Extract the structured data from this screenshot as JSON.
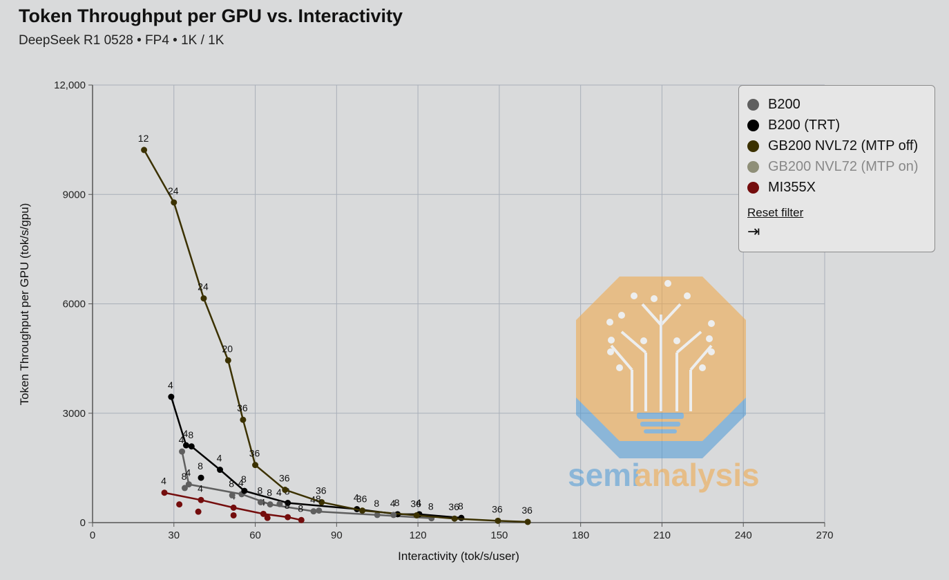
{
  "header": {
    "title": "Token Throughput per GPU vs. Interactivity",
    "subtitle": "DeepSeek R1 0528 • FP4 • 1K / 1K"
  },
  "legend": {
    "reset_label": "Reset filter",
    "collapse_glyph": "⇥"
  },
  "chart_data": {
    "type": "scatter",
    "xlabel": "Interactivity (tok/s/user)",
    "ylabel": "Token Throughput per GPU (tok/s/gpu)",
    "xlim": [
      0,
      270
    ],
    "ylim": [
      0,
      12000
    ],
    "xticks": [
      0,
      30,
      60,
      90,
      120,
      150,
      180,
      210,
      240,
      270
    ],
    "yticks": [
      0,
      3000,
      6000,
      9000,
      12000
    ],
    "xtick_labels": [
      "0",
      "30",
      "60",
      "90",
      "120",
      "150",
      "180",
      "210",
      "240",
      "270"
    ],
    "ytick_labels": [
      "0",
      "3000",
      "6000",
      "9000",
      "12,000"
    ],
    "grid": true,
    "legend_position": "top-right",
    "series": [
      {
        "name": "B200",
        "color": "#5f5f5f",
        "connected": true,
        "active": true,
        "points": [
          {
            "x": 33,
            "y": 1950,
            "label": "4"
          },
          {
            "x": 35.5,
            "y": 1050,
            "label": "4"
          },
          {
            "x": 55,
            "y": 780,
            "label": "4"
          },
          {
            "x": 65.5,
            "y": 500,
            "label": "8"
          },
          {
            "x": 81.5,
            "y": 310,
            "label": "4"
          },
          {
            "x": 105,
            "y": 210,
            "label": "8"
          },
          {
            "x": 125,
            "y": 120,
            "label": "8"
          }
        ]
      },
      {
        "name": "B200 (TRT)",
        "color": "#000000",
        "connected": true,
        "active": true,
        "points": [
          {
            "x": 29,
            "y": 3450,
            "label": "4"
          },
          {
            "x": 34.5,
            "y": 2120,
            "label": "4"
          },
          {
            "x": 36.5,
            "y": 2090,
            "label": "8"
          },
          {
            "x": 47,
            "y": 1450,
            "label": "4"
          },
          {
            "x": 56,
            "y": 870,
            "label": "8"
          },
          {
            "x": 72,
            "y": 540,
            "label": "8"
          },
          {
            "x": 97.5,
            "y": 370,
            "label": "4"
          },
          {
            "x": 112.5,
            "y": 230,
            "label": "8"
          },
          {
            "x": 120.5,
            "y": 230,
            "label": "4"
          },
          {
            "x": 136,
            "y": 130,
            "label": "8"
          }
        ]
      },
      {
        "name": "GB200 NVL72 (MTP off)",
        "color": "#3b3100",
        "connected": true,
        "active": true,
        "points": [
          {
            "x": 19,
            "y": 10220,
            "label": "12"
          },
          {
            "x": 30,
            "y": 8780,
            "label": "24"
          },
          {
            "x": 41,
            "y": 6150,
            "label": "24"
          },
          {
            "x": 50,
            "y": 4450,
            "label": "20"
          },
          {
            "x": 55.5,
            "y": 2820,
            "label": "36"
          },
          {
            "x": 60,
            "y": 1580,
            "label": "36"
          },
          {
            "x": 71,
            "y": 900,
            "label": "36"
          },
          {
            "x": 84.5,
            "y": 560,
            "label": "36"
          },
          {
            "x": 99.5,
            "y": 330,
            "label": "36"
          },
          {
            "x": 119.5,
            "y": 200,
            "label": "36"
          },
          {
            "x": 133.5,
            "y": 110,
            "label": "36"
          },
          {
            "x": 149.5,
            "y": 50,
            "label": "36"
          },
          {
            "x": 160.5,
            "y": 20,
            "label": "36"
          }
        ]
      },
      {
        "name": "GB200 NVL72 (MTP on)",
        "color": "#8f8f78",
        "connected": false,
        "active": false,
        "points": []
      },
      {
        "name": "MI355X",
        "color": "#740d0d",
        "connected": true,
        "active": true,
        "points": [
          {
            "x": 26.5,
            "y": 820,
            "label": "4"
          },
          {
            "x": 40,
            "y": 620,
            "label": "4"
          },
          {
            "x": 52,
            "y": 410,
            "label": "4"
          },
          {
            "x": 63,
            "y": 240,
            "label": "4"
          },
          {
            "x": 72,
            "y": 150,
            "label": "8"
          },
          {
            "x": 77,
            "y": 70,
            "label": "8"
          }
        ]
      }
    ],
    "extra_points": [
      {
        "x": 32,
        "y": 500,
        "color": "#740d0d",
        "label": ""
      },
      {
        "x": 39,
        "y": 300,
        "color": "#740d0d",
        "label": ""
      },
      {
        "x": 52,
        "y": 200,
        "color": "#740d0d",
        "label": ""
      },
      {
        "x": 64.5,
        "y": 130,
        "color": "#740d0d",
        "label": ""
      },
      {
        "x": 40,
        "y": 1230,
        "color": "#000000",
        "label": "8"
      },
      {
        "x": 34,
        "y": 950,
        "color": "#5f5f5f",
        "label": "8"
      },
      {
        "x": 51.5,
        "y": 750,
        "color": "#5f5f5f",
        "label": "8"
      },
      {
        "x": 62,
        "y": 560,
        "color": "#5f5f5f",
        "label": "8"
      },
      {
        "x": 69,
        "y": 510,
        "color": "#5f5f5f",
        "label": "4"
      },
      {
        "x": 83.5,
        "y": 330,
        "color": "#5f5f5f",
        "label": "8"
      },
      {
        "x": 111,
        "y": 210,
        "color": "#5f5f5f",
        "label": "4"
      }
    ]
  }
}
